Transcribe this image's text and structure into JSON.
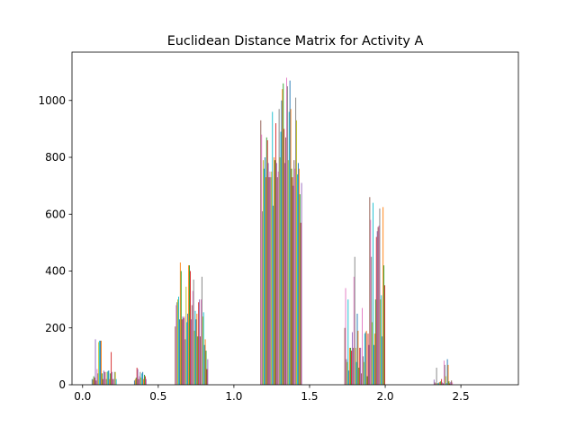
{
  "chart_data": {
    "type": "bar",
    "title": "Euclidean Distance Matrix for Activity A",
    "xlabel": "",
    "ylabel": "",
    "xlim": [
      -0.07,
      2.88
    ],
    "ylim": [
      0,
      1170
    ],
    "xticks": [
      0.0,
      0.5,
      1.0,
      1.5,
      2.0,
      2.5
    ],
    "xtick_labels": [
      "0.0",
      "0.5",
      "1.0",
      "1.5",
      "2.0",
      "2.5"
    ],
    "yticks": [
      0,
      200,
      400,
      600,
      800,
      1000
    ],
    "ytick_labels": [
      "0",
      "200",
      "400",
      "600",
      "800",
      "1000"
    ],
    "grid": false,
    "legend": "none",
    "palette": [
      "#1f77b4",
      "#ff7f0e",
      "#2ca02c",
      "#d62728",
      "#9467bd",
      "#8c564b",
      "#e377c2",
      "#7f7f7f",
      "#bcbd22",
      "#17becf"
    ],
    "bar_width": 0.0055,
    "groups": [
      {
        "start": 0.06,
        "values": [
          20,
          18,
          30,
          25,
          160,
          15,
          55,
          40,
          150,
          155,
          155,
          155,
          40,
          20,
          50,
          45,
          45,
          20,
          45,
          48,
          50,
          20,
          40,
          115,
          45,
          20,
          20,
          45,
          45,
          20
        ]
      },
      {
        "start": 0.34,
        "values": [
          15,
          20,
          25,
          60,
          55,
          20,
          30,
          45,
          25,
          40,
          45,
          20,
          35,
          30,
          20
        ]
      },
      {
        "start": 0.61,
        "values": [
          205,
          280,
          290,
          300,
          310,
          230,
          430,
          400,
          230,
          240,
          235,
          240,
          160,
          345,
          220,
          250,
          420,
          420,
          400,
          230,
          280,
          330,
          370,
          190,
          260,
          230,
          250,
          170,
          290,
          300,
          170,
          300,
          380,
          240,
          255,
          140,
          160,
          120,
          55,
          90
        ]
      },
      {
        "start": 1.175,
        "values": [
          930,
          880,
          610,
          790,
          760,
          800,
          730,
          870,
          860,
          780,
          730,
          750,
          730,
          750,
          960,
          630,
          800,
          790,
          920,
          780,
          730,
          750,
          970,
          800,
          890,
          1000,
          1040,
          1060,
          900,
          780,
          870,
          1080,
          1050,
          790,
          960,
          1070,
          970,
          760,
          730,
          700,
          790,
          760,
          1010,
          930,
          740,
          780,
          760,
          670,
          570,
          710
        ]
      },
      {
        "start": 1.73,
        "values": [
          200,
          340,
          90,
          80,
          300,
          50,
          130,
          130,
          120,
          185,
          130,
          380,
          450,
          130,
          80,
          250,
          190,
          60,
          130,
          130,
          40,
          270,
          100,
          80,
          180,
          185,
          190,
          30,
          180,
          140,
          660,
          580,
          450,
          220,
          640,
          140,
          180,
          300,
          520,
          540,
          555,
          560,
          620,
          300,
          315,
          170,
          625,
          420,
          350
        ]
      },
      {
        "start": 2.32,
        "values": [
          18,
          8,
          5,
          60,
          6,
          5,
          8,
          10,
          12,
          20,
          8,
          5,
          85,
          70,
          30,
          6,
          90,
          70,
          12,
          5,
          10,
          15,
          8
        ]
      }
    ]
  }
}
